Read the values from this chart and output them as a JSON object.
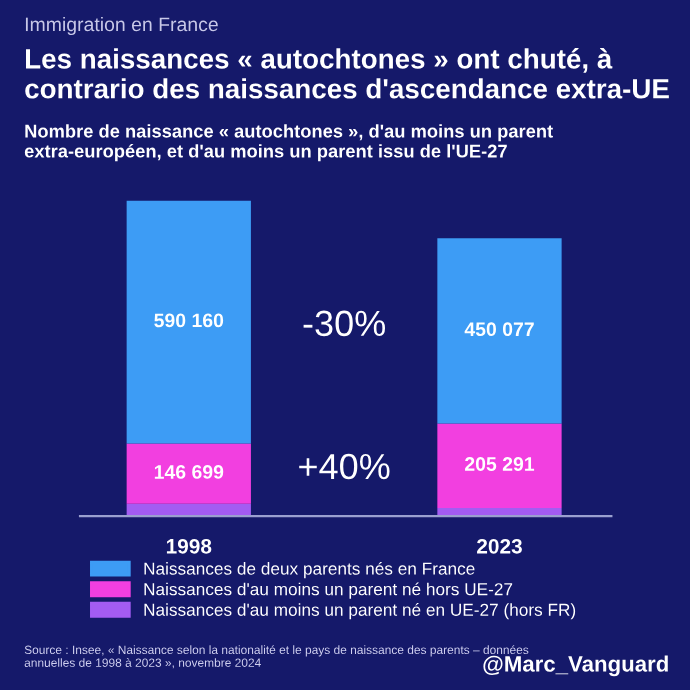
{
  "chart_data": {
    "type": "bar",
    "stacked": true,
    "title": "Les naissances « autochtones » ont chuté, à contrario des naissances d'ascendance extra-UE",
    "subtitle": "Nombre de naissance « autochtones », d'au moins un parent extra-européen, et d'au moins un parent issu de l'UE-27",
    "categories": [
      "1998",
      "2023"
    ],
    "series": [
      {
        "name": "Naissances d'au moins un parent né en UE-27 (hors FR)",
        "color": "#a35cf2",
        "values": [
          30000,
          20000
        ],
        "value_labels": [
          null,
          null
        ]
      },
      {
        "name": "Naissances d'au moins un parent né hors UE-27",
        "color": "#f23fe0",
        "values": [
          146699,
          205291
        ],
        "value_labels": [
          "146 699",
          "205 291"
        ]
      },
      {
        "name": "Naissances de deux parents nés en France",
        "color": "#3d9cf5",
        "values": [
          590160,
          450077
        ],
        "value_labels": [
          "590 160",
          "450 077"
        ]
      }
    ],
    "annotations": [
      "Immigration en France",
      "-30%",
      "+40%",
      "Source : Insee, « Naissance selon la nationalité et le pays de naissance des parents – données annuelles de 1998 à 2023 », novembre 2024",
      "@Marc_Vanguard"
    ],
    "legend": "bottom",
    "grid": false
  }
}
